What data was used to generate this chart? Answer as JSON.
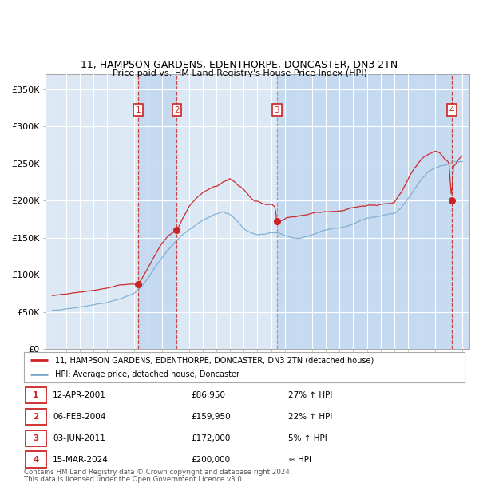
{
  "title1": "11, HAMPSON GARDENS, EDENTHORPE, DONCASTER, DN3 2TN",
  "title2": "Price paid vs. HM Land Registry's House Price Index (HPI)",
  "legend_line1": "11, HAMPSON GARDENS, EDENTHORPE, DONCASTER, DN3 2TN (detached house)",
  "legend_line2": "HPI: Average price, detached house, Doncaster",
  "purchases": [
    {
      "num": 1,
      "date": "12-APR-2001",
      "year": 2001.28,
      "price": 86950,
      "pct": "27% ↑ HPI"
    },
    {
      "num": 2,
      "date": "06-FEB-2004",
      "year": 2004.1,
      "price": 159950,
      "pct": "22% ↑ HPI"
    },
    {
      "num": 3,
      "date": "03-JUN-2011",
      "year": 2011.42,
      "price": 172000,
      "pct": "5% ↑ HPI"
    },
    {
      "num": 4,
      "date": "15-MAR-2024",
      "year": 2024.21,
      "price": 200000,
      "pct": "≈ HPI"
    }
  ],
  "ylabel_ticks": [
    "£0",
    "£50K",
    "£100K",
    "£150K",
    "£200K",
    "£250K",
    "£300K",
    "£350K"
  ],
  "ytick_vals": [
    0,
    50000,
    100000,
    150000,
    200000,
    250000,
    300000,
    350000
  ],
  "xlim": [
    1994.5,
    2025.5
  ],
  "ylim": [
    0,
    370000
  ],
  "hpi_color": "#7aaad0",
  "property_color": "#cc2222",
  "plot_bg": "#dce9f5",
  "fig_bg": "#ffffff",
  "grid_color": "#ffffff",
  "shade_between_color": "#c5daf0",
  "hatch_color": "#c0d5e8",
  "footnote1": "Contains HM Land Registry data © Crown copyright and database right 2024.",
  "footnote2": "This data is licensed under the Open Government Licence v3.0."
}
